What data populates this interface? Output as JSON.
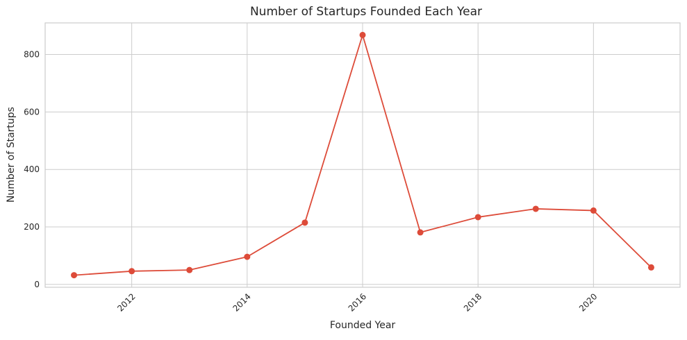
{
  "chart_data": {
    "type": "line",
    "title": "Number of Startups Founded Each Year",
    "xlabel": "Founded Year",
    "ylabel": "Number of Startups",
    "x": [
      2011,
      2012,
      2013,
      2014,
      2015,
      2016,
      2017,
      2018,
      2019,
      2020,
      2021
    ],
    "series": [
      {
        "values": [
          32,
          46,
          50,
          96,
          215,
          868,
          181,
          234,
          263,
          257,
          59
        ]
      }
    ],
    "xlim": [
      2010.5,
      2021.5
    ],
    "ylim": [
      -10,
      910
    ],
    "x_ticks": [
      2012,
      2014,
      2016,
      2018,
      2020
    ],
    "y_ticks": [
      0,
      200,
      400,
      600,
      800
    ],
    "grid": true,
    "x_tick_rotation": -45,
    "line_color": "#dd4b39",
    "marker": "circle"
  }
}
